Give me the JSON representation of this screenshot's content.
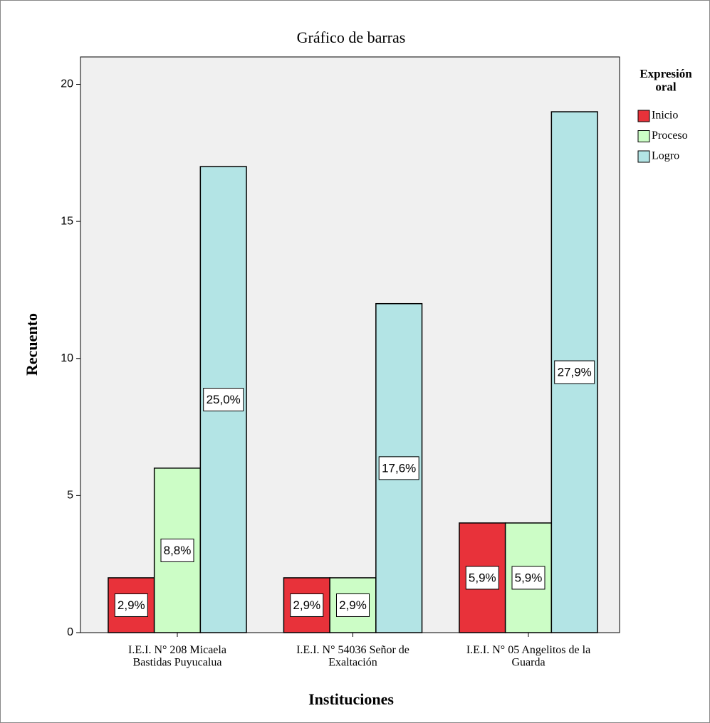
{
  "chart_data": {
    "type": "bar",
    "title": "Gráfico de barras",
    "x_label": "Instituciones",
    "y_label": "Recuento",
    "legend_title": "Expresión\noral",
    "legend_position": "right",
    "categories": [
      "I.E.I. N° 208 Micaela\nBastidas Puyucalua",
      "I.E.I. N° 54036 Señor de\nExaltación",
      "I.E.I. N° 05 Angelitos de la\nGuarda"
    ],
    "series": [
      {
        "name": "Inicio",
        "color": "#e8323a",
        "values": [
          2,
          2,
          4
        ],
        "labels": [
          "2,9%",
          "2,9%",
          "5,9%"
        ]
      },
      {
        "name": "Proceso",
        "color": "#ccfdc6",
        "values": [
          6,
          2,
          4
        ],
        "labels": [
          "8,8%",
          "2,9%",
          "5,9%"
        ]
      },
      {
        "name": "Logro",
        "color": "#b3e4e5",
        "values": [
          17,
          12,
          19
        ],
        "labels": [
          "25,0%",
          "17,6%",
          "27,9%"
        ]
      }
    ],
    "ylim": [
      0,
      21
    ],
    "yticks": [
      0,
      5,
      10,
      15,
      20
    ],
    "grid": false
  }
}
